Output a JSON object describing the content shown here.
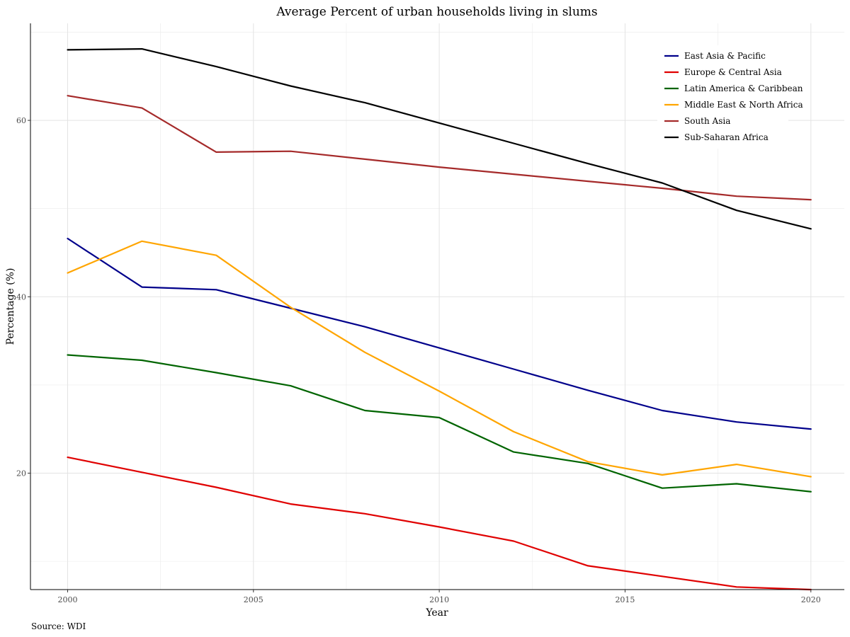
{
  "chart_data": {
    "type": "line",
    "title": "Average Percent of urban households living in slums",
    "xlabel": "Year",
    "ylabel": "Percentage (%)",
    "caption": "Source: WDI",
    "xlim": [
      1999.0,
      2020.9
    ],
    "ylim": [
      6.8,
      71.0
    ],
    "x_ticks": [
      2000,
      2005,
      2010,
      2015,
      2020
    ],
    "y_ticks": [
      20,
      40,
      60
    ],
    "grid": true,
    "legend_position": "top-right",
    "x": [
      2000,
      2002,
      2004,
      2006,
      2008,
      2010,
      2012,
      2014,
      2016,
      2018,
      2020
    ],
    "series": [
      {
        "name": "East Asia & Pacific",
        "color": "#00008B",
        "values": [
          46.6,
          41.1,
          40.8,
          38.7,
          36.6,
          34.2,
          31.8,
          29.4,
          27.1,
          25.8,
          25.0
        ]
      },
      {
        "name": "Europe & Central Asia",
        "color": "#E00000",
        "values": [
          21.8,
          20.1,
          18.4,
          16.5,
          15.4,
          13.9,
          12.3,
          9.5,
          8.3,
          7.1,
          6.8
        ]
      },
      {
        "name": "Latin America & Caribbean",
        "color": "#006400",
        "values": [
          33.4,
          32.8,
          31.4,
          29.9,
          27.1,
          26.3,
          22.4,
          21.1,
          18.3,
          18.8,
          17.9
        ]
      },
      {
        "name": "Middle East & North Africa",
        "color": "#FFA500",
        "values": [
          42.7,
          46.3,
          44.7,
          38.8,
          33.7,
          29.3,
          24.7,
          21.3,
          19.8,
          21.0,
          19.6
        ]
      },
      {
        "name": "South Asia",
        "color": "#A52A2A",
        "values": [
          62.8,
          61.4,
          56.4,
          56.5,
          55.6,
          54.7,
          53.9,
          53.1,
          52.3,
          51.4,
          51.0
        ]
      },
      {
        "name": "Sub-Saharan Africa",
        "color": "#000000",
        "values": [
          68.0,
          68.1,
          66.1,
          63.9,
          62.0,
          59.7,
          57.4,
          55.1,
          52.9,
          49.8,
          47.7
        ]
      }
    ]
  }
}
